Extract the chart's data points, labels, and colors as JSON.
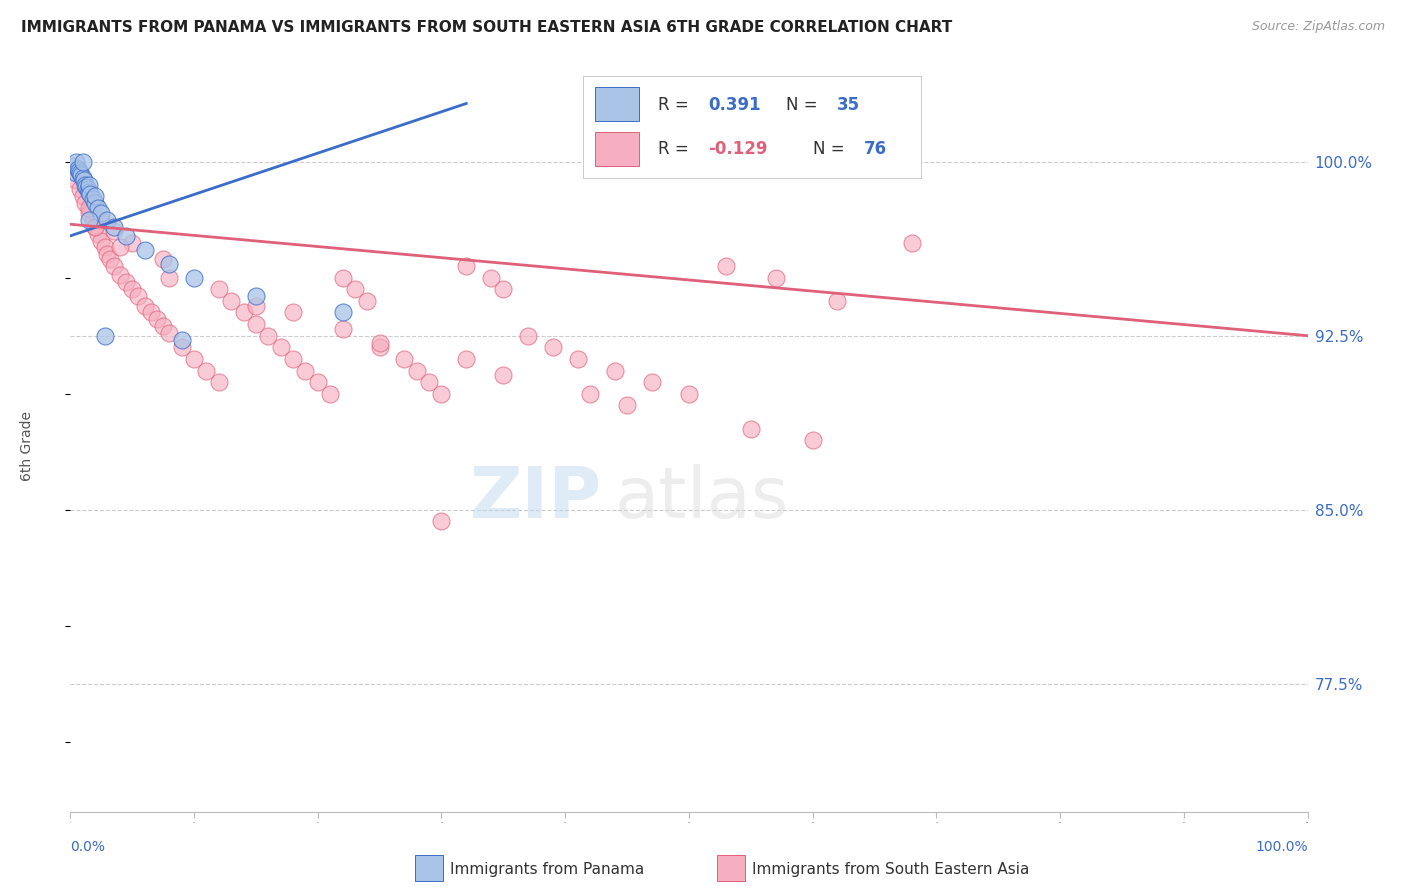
{
  "title": "IMMIGRANTS FROM PANAMA VS IMMIGRANTS FROM SOUTH EASTERN ASIA 6TH GRADE CORRELATION CHART",
  "source": "Source: ZipAtlas.com",
  "ylabel": "6th Grade",
  "y_ticks": [
    77.5,
    85.0,
    92.5,
    100.0
  ],
  "y_tick_labels": [
    "77.5%",
    "85.0%",
    "92.5%",
    "100.0%"
  ],
  "xlim": [
    0.0,
    100.0
  ],
  "ylim": [
    72.0,
    103.5
  ],
  "legend1_color": "#aac4e8",
  "legend2_color": "#f5afc0",
  "trend1_color": "#3b6cc9",
  "trend2_color": "#e0607a",
  "blue_trend_x": [
    0.0,
    32.0
  ],
  "blue_trend_y": [
    96.8,
    102.5
  ],
  "pink_trend_x": [
    0.0,
    100.0
  ],
  "pink_trend_y": [
    97.3,
    92.5
  ],
  "blue_x": [
    0.3,
    0.5,
    0.5,
    0.6,
    0.7,
    0.8,
    0.9,
    1.0,
    1.0,
    1.1,
    1.2,
    1.3,
    1.4,
    1.5,
    1.5,
    1.6,
    1.8,
    2.0,
    2.0,
    2.2,
    2.5,
    3.0,
    3.5,
    4.5,
    6.0,
    8.0,
    10.0,
    15.0,
    22.0,
    9.0,
    1.5,
    2.8
  ],
  "blue_y": [
    99.8,
    100.0,
    99.5,
    99.7,
    99.6,
    99.5,
    99.4,
    99.3,
    100.0,
    99.2,
    99.0,
    98.9,
    98.8,
    98.7,
    99.0,
    98.6,
    98.4,
    98.2,
    98.5,
    98.0,
    97.8,
    97.5,
    97.2,
    96.8,
    96.2,
    95.6,
    95.0,
    94.2,
    93.5,
    92.3,
    97.5,
    92.5
  ],
  "pink_x": [
    0.5,
    0.8,
    1.0,
    1.2,
    1.5,
    1.8,
    2.0,
    2.2,
    2.5,
    2.8,
    3.0,
    3.2,
    3.5,
    4.0,
    4.5,
    5.0,
    5.5,
    6.0,
    6.5,
    7.0,
    7.5,
    8.0,
    9.0,
    10.0,
    11.0,
    12.0,
    13.0,
    14.0,
    15.0,
    16.0,
    17.0,
    18.0,
    19.0,
    20.0,
    21.0,
    22.0,
    23.0,
    24.0,
    25.0,
    27.0,
    28.0,
    29.0,
    30.0,
    32.0,
    34.0,
    35.0,
    37.0,
    39.0,
    41.0,
    44.0,
    47.0,
    50.0,
    53.0,
    57.0,
    62.0,
    68.0,
    1.5,
    2.5,
    3.5,
    5.0,
    7.5,
    12.0,
    18.0,
    25.0,
    35.0,
    45.0,
    60.0,
    2.0,
    4.0,
    8.0,
    15.0,
    22.0,
    32.0,
    42.0,
    55.0,
    30.0
  ],
  "pink_y": [
    99.2,
    98.8,
    98.5,
    98.2,
    97.8,
    97.5,
    97.2,
    96.9,
    96.6,
    96.3,
    96.0,
    95.8,
    95.5,
    95.1,
    94.8,
    94.5,
    94.2,
    93.8,
    93.5,
    93.2,
    92.9,
    92.6,
    92.0,
    91.5,
    91.0,
    90.5,
    94.0,
    93.5,
    93.0,
    92.5,
    92.0,
    91.5,
    91.0,
    90.5,
    90.0,
    95.0,
    94.5,
    94.0,
    92.0,
    91.5,
    91.0,
    90.5,
    90.0,
    95.5,
    95.0,
    94.5,
    92.5,
    92.0,
    91.5,
    91.0,
    90.5,
    90.0,
    95.5,
    95.0,
    94.0,
    96.5,
    98.0,
    97.5,
    97.0,
    96.5,
    95.8,
    94.5,
    93.5,
    92.2,
    90.8,
    89.5,
    88.0,
    97.2,
    96.3,
    95.0,
    93.8,
    92.8,
    91.5,
    90.0,
    88.5,
    84.5
  ],
  "watermark_zip_color": "#c0d8ee",
  "watermark_atlas_color": "#d8d8d8",
  "bottom_legend_color1": "#3b6cc9",
  "bottom_legend_color2": "#e0607a"
}
